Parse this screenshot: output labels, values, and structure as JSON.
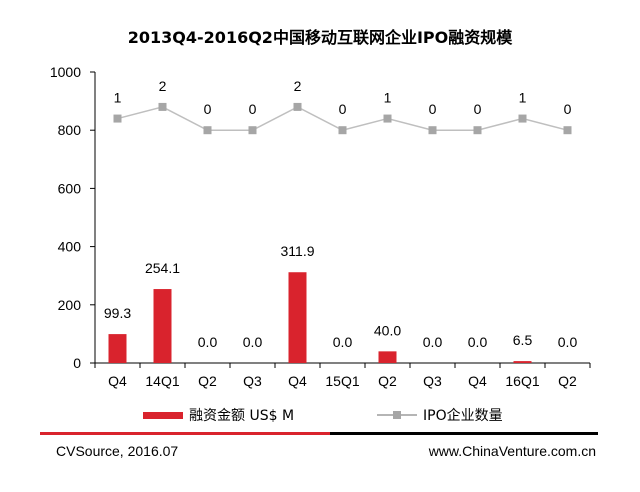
{
  "chart_data": {
    "type": "bar+line",
    "title": "2013Q4-2016Q2中国移动互联网企业IPO融资规模",
    "categories": [
      "Q4",
      "14Q1",
      "Q2",
      "Q3",
      "Q4",
      "15Q1",
      "Q2",
      "Q3",
      "Q4",
      "16Q1",
      "Q2"
    ],
    "series": [
      {
        "name": "融资金额 US$ M",
        "type": "bar",
        "values": [
          99.3,
          254.1,
          0.0,
          0.0,
          311.9,
          0.0,
          40.0,
          0.0,
          0.0,
          6.5,
          0.0
        ],
        "labels": [
          "99.3",
          "254.1",
          "0.0",
          "0.0",
          "311.9",
          "0.0",
          "40.0",
          "0.0",
          "0.0",
          "6.5",
          "0.0"
        ],
        "color": "#d9232d"
      },
      {
        "name": "IPO企业数量",
        "type": "line",
        "values": [
          1,
          2,
          0,
          0,
          2,
          0,
          1,
          0,
          0,
          1,
          0
        ],
        "labels": [
          "1",
          "2",
          "0",
          "0",
          "2",
          "0",
          "1",
          "0",
          "0",
          "1",
          "0"
        ],
        "color": "#a6a6a6"
      }
    ],
    "y_ticks": [
      "0",
      "200",
      "400",
      "600",
      "800",
      "1000"
    ],
    "ylim": [
      0,
      1000
    ],
    "grid": false,
    "legend_position": "bottom"
  },
  "footer": {
    "source": "CVSource, 2016.07",
    "website": "www.ChinaVenture.com.cn"
  }
}
